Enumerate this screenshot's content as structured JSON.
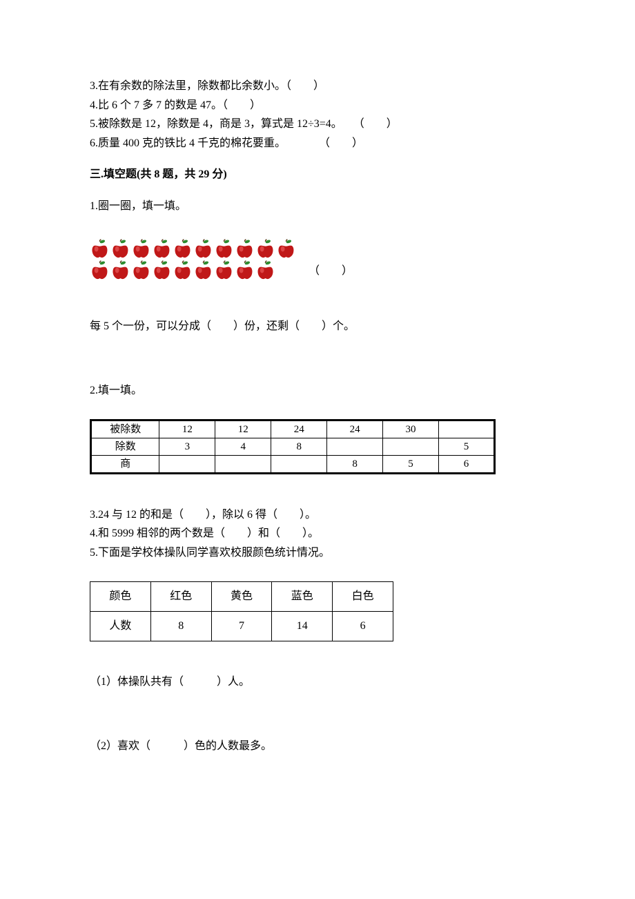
{
  "q3": "3.在有余数的除法里，除数都比余数小。（　　）",
  "q4": "4.比 6 个 7 多 7 的数是 47。（　　）",
  "q5": "5.被除数是 12，除数是 4，商是 3，算式是 12÷3=4。　　（　　）",
  "q6": "6.质量 400 克的铁比 4 千克的棉花要重。　　　　（　　）",
  "section3": "三.填空题(共 8 题，共 29 分)",
  "s3q1": "1.圈一圈，填一填。",
  "apples": {
    "row1_count": 10,
    "row2_count": 9,
    "apple_body": "#c01818",
    "apple_highlight": "#e85858",
    "leaf": "#2e8b2e",
    "stem": "#5a3a1a",
    "paren": "（　　）"
  },
  "s3q1b": "每 5 个一份，可以分成（　　）份，还剩（　　）个。",
  "s3q2": "2.填一填。",
  "table2": {
    "headers": [
      "被除数",
      "除数",
      "商"
    ],
    "columns": [
      {
        "dividend": "12",
        "divisor": "3",
        "quotient": ""
      },
      {
        "dividend": "12",
        "divisor": "4",
        "quotient": ""
      },
      {
        "dividend": "24",
        "divisor": "8",
        "quotient": ""
      },
      {
        "dividend": "24",
        "divisor": "",
        "quotient": "8"
      },
      {
        "dividend": "30",
        "divisor": "",
        "quotient": "5"
      },
      {
        "dividend": "",
        "divisor": "5",
        "quotient": "6"
      }
    ]
  },
  "s3q3": "3.24 与 12 的和是（　　），除以 6 得（　　）。",
  "s3q4": "4.和 5999 相邻的两个数是（　　）和（　　）。",
  "s3q5": "5.下面是学校体操队同学喜欢校服颜色统计情况。",
  "table5": {
    "row_labels": [
      "颜色",
      "人数"
    ],
    "cols": [
      "红色",
      "黄色",
      "蓝色",
      "白色"
    ],
    "values": [
      "8",
      "7",
      "14",
      "6"
    ]
  },
  "s3q5_1": "（1）体操队共有（　　　）人。",
  "s3q5_2": "（2）喜欢（　　　）色的人数最多。"
}
